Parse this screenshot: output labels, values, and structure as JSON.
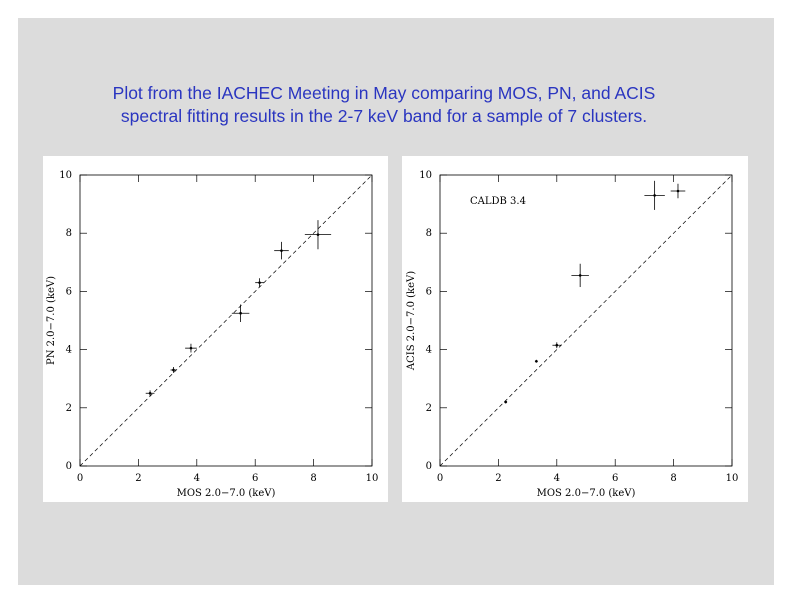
{
  "title_lines": [
    "Plot from the IACHEC Meeting in May comparing MOS, PN, and ACIS",
    "spectral fitting results in the 2-7 keV band for a sample of 7 clusters."
  ],
  "chart_data": [
    {
      "type": "scatter",
      "xlabel": "MOS 2.0−7.0 (keV)",
      "ylabel": "PN 2.0−7.0 (keV)",
      "x": [
        2.4,
        3.2,
        3.8,
        5.5,
        6.15,
        6.9,
        8.15
      ],
      "y": [
        2.5,
        3.3,
        4.05,
        5.25,
        6.3,
        7.4,
        7.95
      ],
      "xerr": [
        0.15,
        0.1,
        0.2,
        0.3,
        0.15,
        0.25,
        0.45
      ],
      "yerr": [
        0.1,
        0.1,
        0.15,
        0.3,
        0.15,
        0.3,
        0.5
      ],
      "xlim": [
        0,
        10
      ],
      "ylim": [
        0,
        10
      ],
      "xticks": [
        0,
        2,
        4,
        6,
        8,
        10
      ],
      "yticks": [
        0,
        2,
        4,
        6,
        8,
        10
      ]
    },
    {
      "type": "scatter",
      "xlabel": "MOS 2.0−7.0 (keV)",
      "ylabel": "ACIS 2.0−7.0 (keV)",
      "annotation": "CALDB 3.4",
      "x": [
        2.25,
        3.3,
        4.0,
        4.8,
        7.35,
        8.15
      ],
      "y": [
        2.2,
        3.6,
        4.15,
        6.55,
        9.3,
        9.45
      ],
      "xerr": [
        0.05,
        0.05,
        0.15,
        0.3,
        0.35,
        0.25
      ],
      "yerr": [
        0.05,
        0.05,
        0.1,
        0.4,
        0.5,
        0.25
      ],
      "xlim": [
        0,
        10
      ],
      "ylim": [
        0,
        10
      ],
      "xticks": [
        0,
        2,
        4,
        6,
        8,
        10
      ],
      "yticks": [
        0,
        2,
        4,
        6,
        8,
        10
      ]
    }
  ]
}
